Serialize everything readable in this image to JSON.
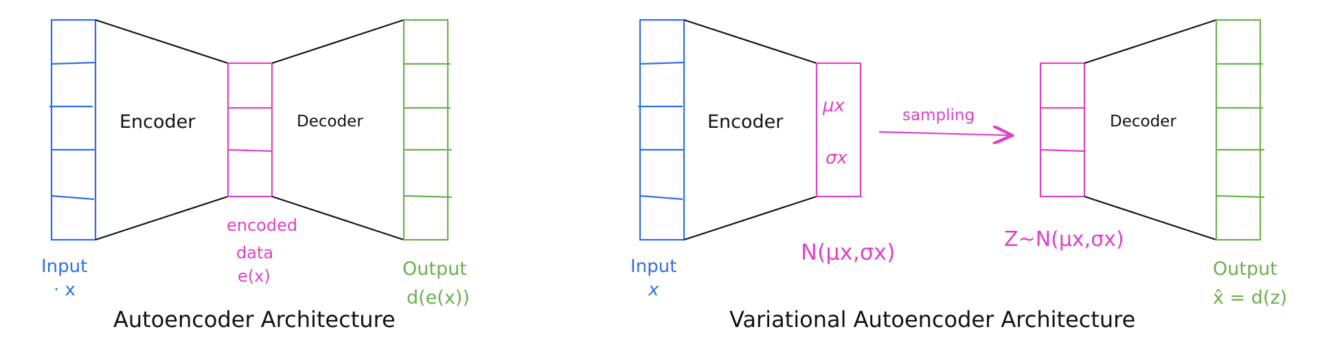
{
  "colors": {
    "input": "#2f6ee6",
    "latent": "#e040c8",
    "output": "#6ab04c",
    "text": "#111111"
  },
  "autoencoder": {
    "encoder_label": "Encoder",
    "decoder_label": "Decoder",
    "input_label": "Input",
    "input_symbol": "· x",
    "latent_caption_1": "encoded",
    "latent_caption_2": "data",
    "latent_caption_3": "e(x)",
    "output_label": "Output",
    "output_symbol": "d(e(x))",
    "title": "Autoencoder  Architecture"
  },
  "vae": {
    "encoder_label": "Encoder",
    "decoder_label": "Decoder",
    "mu_label": "μx",
    "sigma_label": "σx",
    "sampling_label": "sampling",
    "input_label": "Input",
    "input_symbol": "x",
    "dist_label": "N(μx,σx)",
    "z_label": "Z~N(μx,σx)",
    "output_label": "Output",
    "output_symbol": "x̂ = d(z)",
    "title": "Variational  Autoencoder  Architecture"
  }
}
